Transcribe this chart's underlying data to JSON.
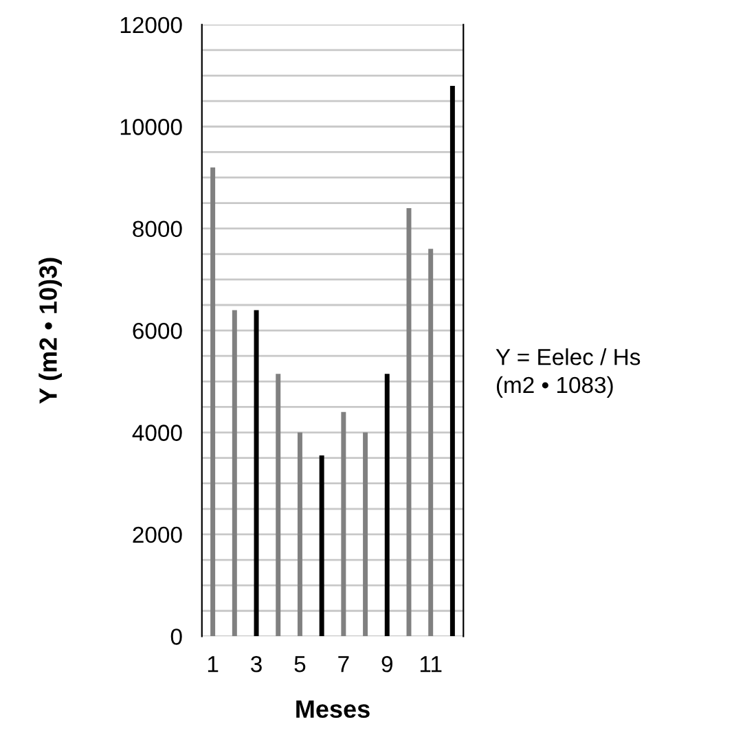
{
  "chart_data": {
    "type": "bar",
    "xlabel": "Meses",
    "ylabel": "Y (m2 • 10)3)",
    "annotations": [
      "Y = Eelec / Hs\n(m2 • 1083)"
    ],
    "categories": [
      "1",
      null,
      "3",
      null,
      "5",
      null,
      "7",
      null,
      "9",
      null,
      "11",
      null
    ],
    "values": [
      9200,
      6400,
      6400,
      5150,
      4000,
      3550,
      4400,
      4000,
      5150,
      8400,
      7600,
      10800
    ],
    "colors": [
      "#808080",
      "#808080",
      "#000000",
      "#808080",
      "#808080",
      "#000000",
      "#808080",
      "#808080",
      "#000000",
      "#808080",
      "#808080",
      "#000000"
    ],
    "ylim": [
      0,
      12000
    ],
    "yticks": [
      0,
      {
        "value": 500,
        "label": null
      },
      {
        "value": 1000,
        "label": null
      },
      {
        "value": 1500,
        "label": null
      },
      2000,
      {
        "value": 2500,
        "label": null
      },
      {
        "value": 3000,
        "label": null
      },
      {
        "value": 3500,
        "label": null
      },
      4000,
      {
        "value": 4500,
        "label": null
      },
      {
        "value": 5000,
        "label": null
      },
      {
        "value": 5500,
        "label": null
      },
      6000,
      {
        "value": 6500,
        "label": null
      },
      {
        "value": 7000,
        "label": null
      },
      {
        "value": 7500,
        "label": null
      },
      8000,
      {
        "value": 8500,
        "label": null
      },
      {
        "value": 9000,
        "label": null
      },
      {
        "value": 9500,
        "label": null
      },
      10000,
      {
        "value": 10500,
        "label": null
      },
      {
        "value": 11000,
        "label": null
      },
      {
        "value": 11500,
        "label": null
      },
      12000
    ],
    "grid": "y",
    "legend": false
  }
}
